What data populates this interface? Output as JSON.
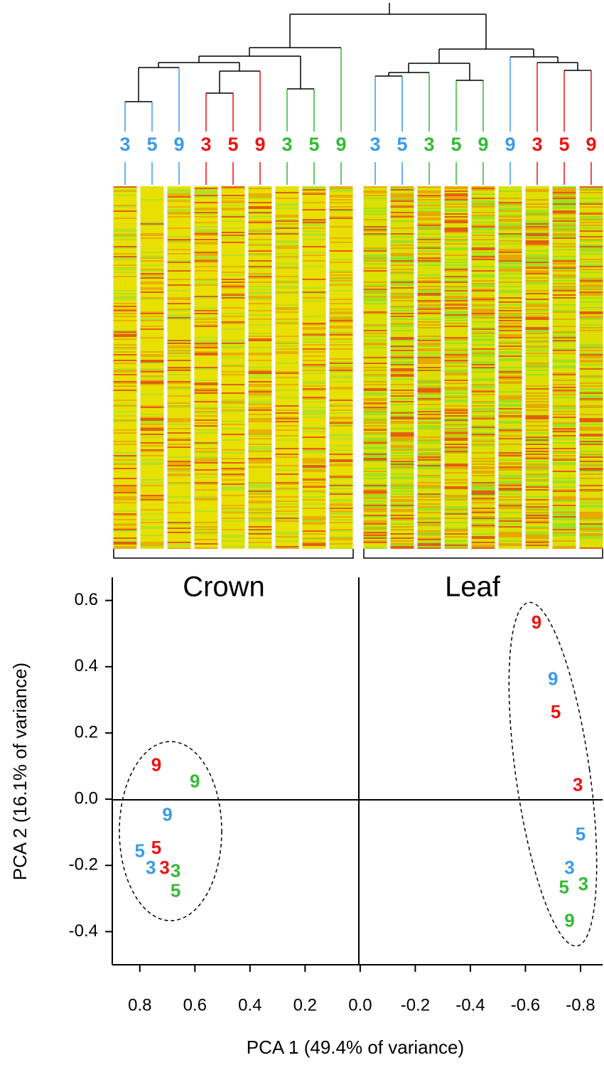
{
  "dendrogram": {
    "leaves": [
      "3",
      "5",
      "9",
      "3",
      "5",
      "9",
      "3",
      "5",
      "9",
      "3",
      "5",
      "3",
      "5",
      "9",
      "9",
      "3",
      "5",
      "9"
    ],
    "colors": [
      "#3b9be8",
      "#3b9be8",
      "#3b9be8",
      "#ee1111",
      "#ee1111",
      "#ee1111",
      "#33bb33",
      "#33bb33",
      "#33bb33",
      "#3b9be8",
      "#3b9be8",
      "#33bb33",
      "#33bb33",
      "#33bb33",
      "#3b9be8",
      "#ee1111",
      "#ee1111",
      "#ee1111"
    ]
  },
  "chart_data": {
    "type": "scatter",
    "annotations": [
      "Crown",
      "Leaf"
    ],
    "xlabel": "PCA 1 (49.4% of variance)",
    "ylabel": "PCA 2 (16.1% of variance)",
    "xlim": [
      0.9,
      -0.88
    ],
    "ylim": [
      -0.5,
      0.67
    ],
    "xticks": [
      0.8,
      0.6,
      0.4,
      0.2,
      {
        "value": 0,
        "label": "0.0"
      },
      -0.2,
      -0.4,
      -0.6,
      -0.8
    ],
    "yticks": [
      -0.4,
      -0.2,
      {
        "value": 0,
        "label": "0.0"
      },
      0.2,
      0.4,
      0.6
    ],
    "series": [
      {
        "color": "#3b9be8",
        "labels": [
          "3",
          "5",
          "9",
          "3",
          "5",
          "9"
        ],
        "x": [
          0.76,
          0.8,
          0.7,
          -0.76,
          -0.8,
          -0.7
        ],
        "y": [
          -0.21,
          -0.16,
          -0.05,
          -0.21,
          -0.11,
          0.36
        ]
      },
      {
        "color": "#ee1111",
        "labels": [
          "3",
          "5",
          "9",
          "3",
          "5",
          "9"
        ],
        "x": [
          0.71,
          0.74,
          0.74,
          -0.79,
          -0.71,
          -0.64
        ],
        "y": [
          -0.21,
          -0.15,
          0.1,
          0.04,
          0.26,
          0.53
        ]
      },
      {
        "color": "#33bb33",
        "labels": [
          "3",
          "5",
          "9",
          "3",
          "5",
          "9"
        ],
        "x": [
          0.67,
          0.67,
          0.6,
          -0.81,
          -0.74,
          -0.76
        ],
        "y": [
          -0.22,
          -0.28,
          0.05,
          -0.26,
          -0.27,
          -0.37
        ]
      }
    ]
  }
}
